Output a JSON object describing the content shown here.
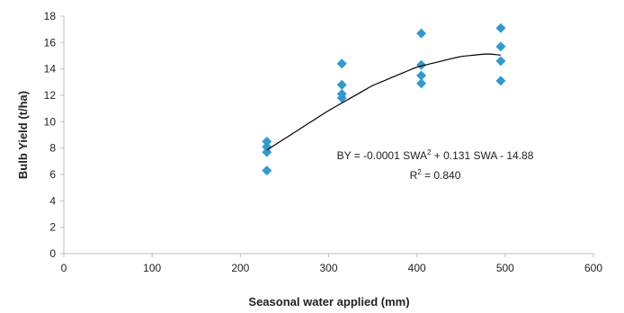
{
  "chart_data": {
    "type": "scatter",
    "title": "",
    "xlabel": "Seasonal water applied (mm)",
    "ylabel": "Bulb Yield (t/ha)",
    "xlim": [
      0,
      600
    ],
    "ylim": [
      0,
      18
    ],
    "x_ticks": [
      "0",
      "100",
      "200",
      "300",
      "400",
      "500",
      "600"
    ],
    "y_ticks": [
      "0",
      "2",
      "4",
      "6",
      "8",
      "10",
      "12",
      "14",
      "16",
      "18"
    ],
    "grid": false,
    "marker": "diamond",
    "marker_color": "#2E9AD3",
    "trendline": {
      "type": "polynomial-2",
      "equation_prefix": "BY = -0.0001 SWA",
      "equation_superscript": "2",
      "equation_suffix": " + 0.131 SWA - 14.88",
      "r2_prefix": "R",
      "r2_superscript": "2",
      "r2_suffix": " = 0.840",
      "coefficients": {
        "a": -0.0001,
        "b": 0.131,
        "c": -14.88
      },
      "drawn_points": [
        [
          230,
          7.85
        ],
        [
          300,
          10.85
        ],
        [
          350,
          12.75
        ],
        [
          400,
          14.15
        ],
        [
          450,
          14.95
        ],
        [
          480,
          15.15
        ],
        [
          495,
          15.05
        ]
      ],
      "x_range": [
        230,
        495
      ],
      "color": "#000000"
    },
    "series": [
      {
        "points": [
          [
            230,
            8.5
          ],
          [
            230,
            8.1
          ],
          [
            230,
            7.7
          ],
          [
            230,
            6.3
          ],
          [
            315,
            14.4
          ],
          [
            315,
            12.8
          ],
          [
            315,
            12.1
          ],
          [
            315,
            11.8
          ],
          [
            405,
            16.7
          ],
          [
            405,
            14.3
          ],
          [
            405,
            13.5
          ],
          [
            405,
            12.9
          ],
          [
            495,
            17.1
          ],
          [
            495,
            15.7
          ],
          [
            495,
            14.6
          ],
          [
            495,
            13.1
          ]
        ]
      }
    ]
  }
}
